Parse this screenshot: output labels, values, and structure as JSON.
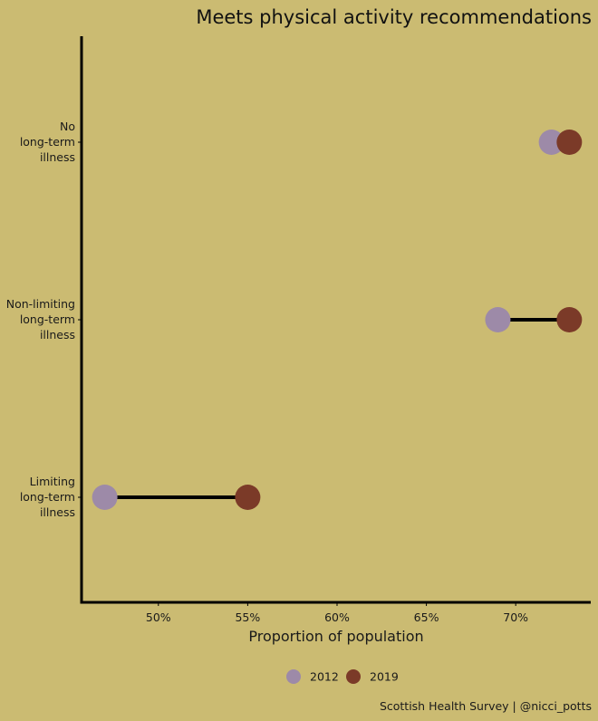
{
  "chart_data": {
    "type": "dumbbell",
    "title": "Meets physical activity recommendations",
    "xlabel": "Proportion of population",
    "caption": "Scottish Health Survey | @nicci_potts",
    "xlim": [
      45.7,
      74.2
    ],
    "xticks": [
      50,
      55,
      60,
      65,
      70
    ],
    "tick_labels": [
      "50%",
      "55%",
      "60%",
      "65%",
      "70%"
    ],
    "categories": [
      {
        "label": [
          "No",
          "long-term",
          "illness"
        ],
        "v2012": 72,
        "v2019": 73
      },
      {
        "label": [
          "Non-limiting",
          "long-term",
          "illness"
        ],
        "v2012": 69,
        "v2019": 73
      },
      {
        "label": [
          "Limiting",
          "long-term",
          "illness"
        ],
        "v2012": 47,
        "v2019": 55
      }
    ],
    "series": [
      {
        "name": "2012",
        "color": "#9d8aa8"
      },
      {
        "name": "2019",
        "color": "#7b3a28"
      }
    ],
    "legend_position": "bottom",
    "grid": false
  }
}
